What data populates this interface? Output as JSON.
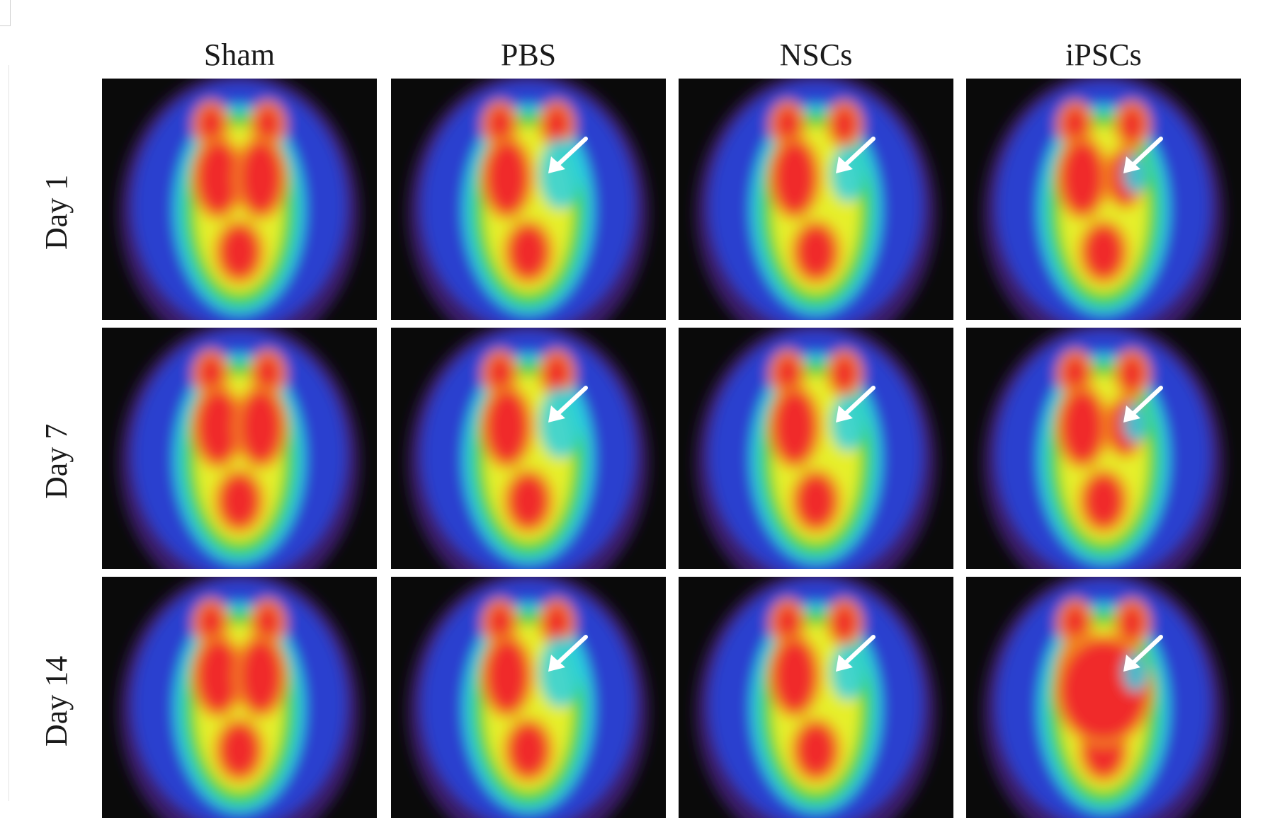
{
  "figure": {
    "columns": [
      "Sham",
      "PBS",
      "NSCs",
      "iPSCs"
    ],
    "rows": [
      "Day 1",
      "Day 7",
      "Day 14"
    ],
    "colormap": [
      "#0a0a0a",
      "#3a1a6a",
      "#2a3fcf",
      "#2ad0e6",
      "#3fd23f",
      "#e6ef2a",
      "#f28a1a",
      "#f02a2a"
    ]
  }
}
